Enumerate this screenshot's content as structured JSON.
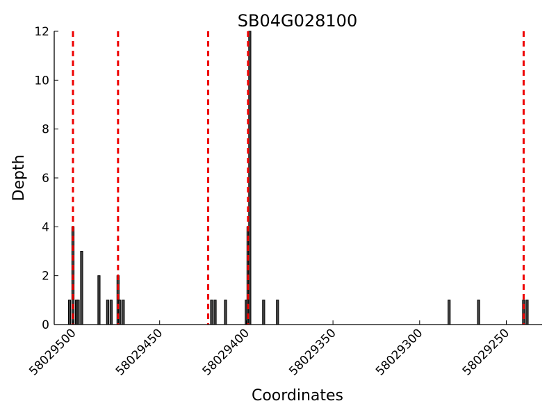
{
  "chart_data": {
    "type": "bar",
    "title": "SB04G028100",
    "xlabel": "Coordinates",
    "ylabel": "Depth",
    "x_axis_reversed": true,
    "xlim": [
      58029502,
      58029238
    ],
    "ylim": [
      0,
      12
    ],
    "xticks": [
      58029500,
      58029450,
      58029400,
      58029350,
      58029300,
      58029250
    ],
    "xtick_labels": [
      "58029500",
      "58029450",
      "58029400",
      "58029350",
      "58029300",
      "58029250"
    ],
    "yticks": [
      0,
      2,
      4,
      6,
      8,
      10,
      12
    ],
    "ytick_labels": [
      "0",
      "2",
      "4",
      "6",
      "8",
      "10",
      "12"
    ],
    "grid": false,
    "bar_color": "#000000",
    "bars": [
      {
        "x": 58029502,
        "y": 1
      },
      {
        "x": 58029500,
        "y": 4
      },
      {
        "x": 58029498,
        "y": 1
      },
      {
        "x": 58029497,
        "y": 1
      },
      {
        "x": 58029495,
        "y": 3
      },
      {
        "x": 58029485,
        "y": 2
      },
      {
        "x": 58029480,
        "y": 1
      },
      {
        "x": 58029478,
        "y": 1
      },
      {
        "x": 58029474,
        "y": 2
      },
      {
        "x": 58029473,
        "y": 1
      },
      {
        "x": 58029471,
        "y": 1
      },
      {
        "x": 58029420,
        "y": 1
      },
      {
        "x": 58029418,
        "y": 1
      },
      {
        "x": 58029412,
        "y": 1
      },
      {
        "x": 58029400,
        "y": 1
      },
      {
        "x": 58029399,
        "y": 4
      },
      {
        "x": 58029398,
        "y": 12
      },
      {
        "x": 58029390,
        "y": 1
      },
      {
        "x": 58029382,
        "y": 1
      },
      {
        "x": 58029283,
        "y": 1
      },
      {
        "x": 58029266,
        "y": 1
      },
      {
        "x": 58029240,
        "y": 1
      },
      {
        "x": 58029238,
        "y": 1
      }
    ],
    "reference_lines": {
      "color": "#ee0000",
      "style": "dashed",
      "x": [
        58029500,
        58029474,
        58029422,
        58029399,
        58029240
      ]
    }
  }
}
